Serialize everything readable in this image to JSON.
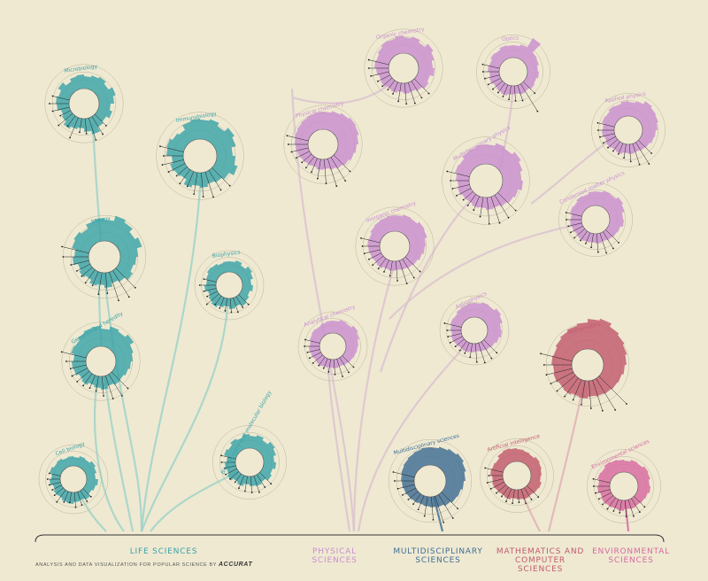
{
  "colors": {
    "background": "#efe9d2",
    "life": "#3aa3a8",
    "physical": "#c98fd0",
    "multi": "#3f6e95",
    "math": "#c25a6e",
    "env": "#d86aa0",
    "branch_life": "#9fd3c9",
    "branch_physical": "#dcc3cf",
    "branch_math": "#e0b3b3",
    "ink": "#333333"
  },
  "fields": [
    {
      "name": "LIFE SCIENCES",
      "color": "life"
    },
    {
      "name": "PHYSICAL SCIENCES",
      "color": "physical"
    },
    {
      "name": "MULTIDISCIPLINARY SCIENCES",
      "color": "multi"
    },
    {
      "name": "MATHEMATICS AND COMPUTER SCIENCES",
      "color": "math"
    },
    {
      "name": "ENVIRONMENTAL SCIENCES",
      "color": "env"
    }
  ],
  "footer": {
    "credit": "ANALYSIS AND DATA VISUALIZATION FOR POPULAR SCIENCE BY",
    "studio": "Accurat"
  },
  "chart_data": {
    "type": "radial",
    "disciplines": [
      {
        "name": "Microbiology",
        "field": "life",
        "radius": 17,
        "spikes": [
          14,
          16,
          18,
          15,
          20,
          17,
          13,
          16,
          12,
          14,
          19,
          15,
          11,
          13,
          16,
          12,
          10,
          14,
          15,
          13,
          17,
          12,
          15,
          16
        ]
      },
      {
        "name": "Immunobiology",
        "field": "life",
        "radius": 19,
        "spikes": [
          22,
          24,
          20,
          26,
          23,
          18,
          21,
          25,
          19,
          16,
          14,
          17,
          15,
          18,
          12,
          14,
          16,
          13,
          19,
          20,
          17,
          15,
          21,
          23
        ]
      },
      {
        "name": "Biology",
        "field": "life",
        "radius": 18,
        "spikes": [
          24,
          30,
          27,
          22,
          26,
          20,
          18,
          16,
          19,
          15,
          13,
          17,
          14,
          16,
          12,
          15,
          13,
          18,
          16,
          20,
          22,
          19,
          24,
          26
        ]
      },
      {
        "name": "Biophysics",
        "field": "life",
        "radius": 15,
        "spikes": [
          12,
          14,
          11,
          15,
          13,
          10,
          12,
          9,
          11,
          13,
          10,
          12,
          9,
          11,
          14,
          12,
          10,
          13,
          11,
          12,
          14,
          13,
          11,
          12
        ]
      },
      {
        "name": "Genetics and heredity",
        "field": "life",
        "radius": 17,
        "spikes": [
          20,
          24,
          22,
          26,
          21,
          19,
          17,
          15,
          13,
          14,
          12,
          15,
          13,
          11,
          14,
          12,
          15,
          16,
          14,
          18,
          17,
          20,
          22,
          23
        ]
      },
      {
        "name": "Cell biology",
        "field": "life",
        "radius": 15,
        "spikes": [
          10,
          12,
          11,
          14,
          12,
          10,
          13,
          11,
          9,
          12,
          10,
          11,
          13,
          12,
          10,
          11,
          9,
          12,
          10,
          13,
          11,
          12,
          10,
          11
        ]
      },
      {
        "name": "Biochemistry and molecular biology",
        "field": "life",
        "radius": 16,
        "spikes": [
          14,
          16,
          13,
          17,
          15,
          12,
          14,
          11,
          13,
          10,
          12,
          11,
          9,
          12,
          10,
          13,
          11,
          12,
          10,
          14,
          12,
          15,
          13,
          16
        ]
      },
      {
        "name": "Organic chemistry",
        "field": "physical",
        "radius": 17,
        "spikes": [
          18,
          20,
          17,
          22,
          19,
          16,
          18,
          14,
          16,
          13,
          11,
          12,
          10,
          12,
          11,
          13,
          12,
          14,
          16,
          15,
          17,
          19,
          18,
          20
        ]
      },
      {
        "name": "Optics",
        "field": "physical",
        "radius": 16,
        "spikes": [
          14,
          16,
          28,
          15,
          14,
          12,
          13,
          11,
          12,
          10,
          11,
          9,
          10,
          12,
          11,
          10,
          12,
          11,
          13,
          12,
          14,
          13,
          15,
          14
        ]
      },
      {
        "name": "Physical chemistry",
        "field": "physical",
        "radius": 17,
        "spikes": [
          20,
          22,
          24,
          26,
          25,
          23,
          21,
          19,
          17,
          15,
          13,
          11,
          12,
          10,
          11,
          12,
          13,
          14,
          15,
          16,
          17,
          18,
          19,
          20
        ]
      },
      {
        "name": "Applied physics",
        "field": "physical",
        "radius": 16,
        "spikes": [
          16,
          18,
          22,
          20,
          19,
          17,
          15,
          14,
          12,
          11,
          10,
          11,
          10,
          12,
          11,
          13,
          12,
          14,
          13,
          15,
          14,
          16,
          15,
          17
        ]
      },
      {
        "name": "Multidisciplinary physics",
        "field": "physical",
        "radius": 19,
        "spikes": [
          22,
          25,
          23,
          27,
          24,
          21,
          23,
          19,
          17,
          15,
          13,
          14,
          12,
          13,
          11,
          12,
          14,
          13,
          15,
          17,
          16,
          19,
          20,
          22
        ]
      },
      {
        "name": "Condensed matter physics",
        "field": "physical",
        "radius": 16,
        "spikes": [
          16,
          18,
          17,
          20,
          18,
          15,
          16,
          13,
          12,
          11,
          10,
          11,
          10,
          11,
          12,
          11,
          12,
          13,
          12,
          14,
          13,
          15,
          14,
          16
        ]
      },
      {
        "name": "Inorganic chemistry",
        "field": "physical",
        "radius": 17,
        "spikes": [
          18,
          20,
          19,
          22,
          21,
          18,
          17,
          15,
          13,
          12,
          11,
          10,
          11,
          10,
          12,
          11,
          12,
          13,
          14,
          13,
          15,
          16,
          17,
          18
        ]
      },
      {
        "name": "Analytical chemistry",
        "field": "physical",
        "radius": 15,
        "spikes": [
          14,
          16,
          15,
          18,
          16,
          14,
          13,
          12,
          11,
          10,
          9,
          10,
          9,
          10,
          11,
          10,
          11,
          12,
          11,
          12,
          13,
          12,
          13,
          14
        ]
      },
      {
        "name": "Astrophysics",
        "field": "physical",
        "radius": 15,
        "spikes": [
          16,
          18,
          17,
          20,
          18,
          15,
          16,
          14,
          12,
          11,
          10,
          9,
          10,
          11,
          10,
          11,
          12,
          11,
          12,
          13,
          12,
          14,
          15,
          16
        ]
      },
      {
        "name": "Multidisciplinary sciences",
        "field": "multi",
        "radius": 18,
        "spikes": [
          20,
          22,
          24,
          26,
          24,
          22,
          20,
          18,
          17,
          15,
          13,
          12,
          11,
          10,
          11,
          12,
          13,
          14,
          15,
          16,
          17,
          18,
          19,
          20
        ]
      },
      {
        "name": "Mathematics",
        "field": "math",
        "radius": 18,
        "spikes": [
          34,
          36,
          32,
          30,
          28,
          26,
          24,
          22,
          21,
          20,
          19,
          18,
          20,
          19,
          21,
          20,
          22,
          21,
          23,
          22,
          24,
          26,
          28,
          30
        ]
      },
      {
        "name": "Artificial intelligence",
        "field": "math",
        "radius": 16,
        "spikes": [
          14,
          13,
          12,
          14,
          13,
          12,
          11,
          13,
          12,
          11,
          12,
          11,
          10,
          12,
          11,
          12,
          13,
          12,
          14,
          13,
          12,
          15,
          16,
          15
        ]
      },
      {
        "name": "Environmental sciences",
        "field": "env",
        "radius": 16,
        "spikes": [
          13,
          15,
          14,
          16,
          15,
          13,
          14,
          12,
          11,
          10,
          11,
          10,
          12,
          11,
          12,
          13,
          12,
          14,
          13,
          15,
          14,
          16,
          15,
          14
        ]
      }
    ]
  }
}
